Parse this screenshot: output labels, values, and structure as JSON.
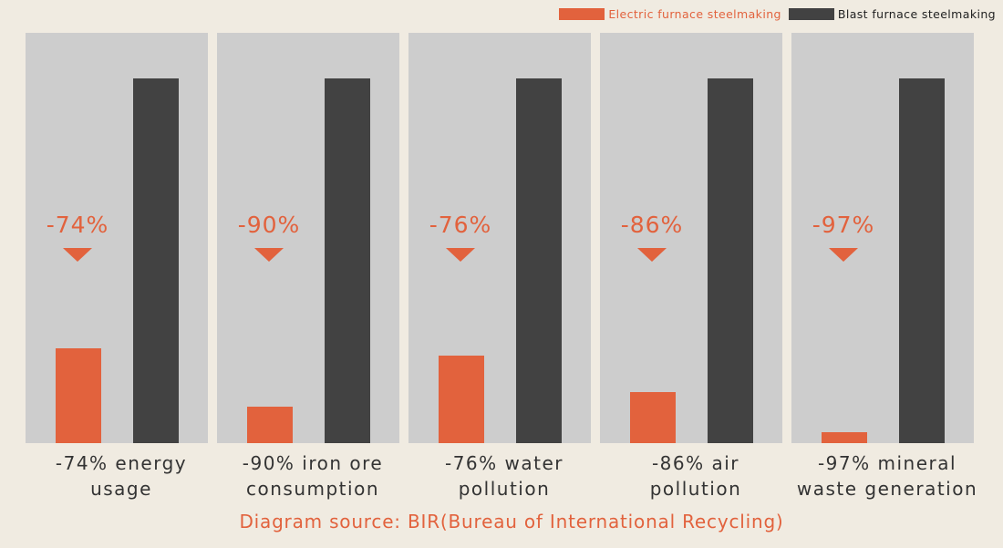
{
  "legend": {
    "electric_label": "Electric furnace steelmaking",
    "blast_label": "Blast furnace steelmaking"
  },
  "chart_data": {
    "type": "bar",
    "categories": [
      [
        "-74% energy",
        "usage"
      ],
      [
        "-90% iron ore",
        "consumption"
      ],
      [
        "-76% water",
        "pollution"
      ],
      [
        "-86% air",
        "pollution"
      ],
      [
        "-97% mineral",
        "waste generation"
      ]
    ],
    "series": [
      {
        "name": "Electric furnace steelmaking",
        "values": [
          26,
          10,
          24,
          14,
          3
        ]
      },
      {
        "name": "Blast furnace steelmaking",
        "values": [
          100,
          100,
          100,
          100,
          100
        ]
      }
    ],
    "annotations": [
      "-74%",
      "-90%",
      "-76%",
      "-86%",
      "-97%"
    ],
    "ylim": [
      0,
      100
    ],
    "grid": false,
    "legend_position": "top-right"
  },
  "source": "Diagram source: BIR(Bureau of International Recycling)",
  "colors": {
    "electric": "#e2623d",
    "blast": "#424242",
    "panel": "#cdcdcd",
    "background": "#f0ebe1",
    "text": "#333333",
    "accent": "#e2623d"
  }
}
